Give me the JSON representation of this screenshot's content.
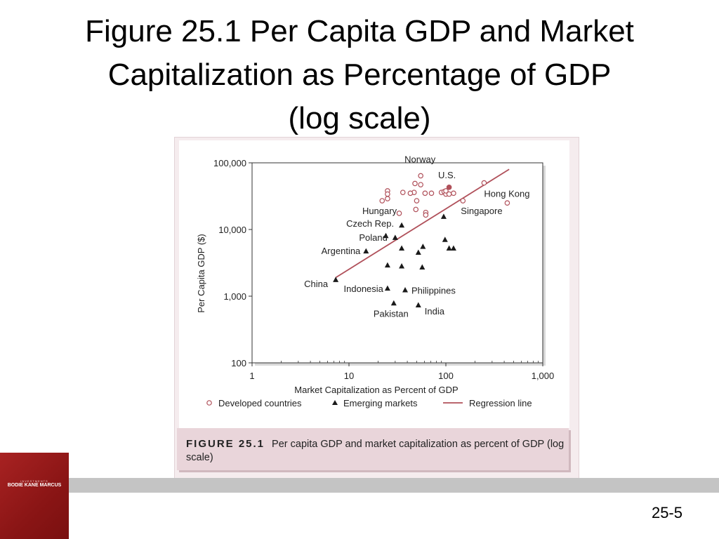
{
  "slide": {
    "title_lines": [
      "Figure 25.1 Per Capita GDP and Market",
      "Capitalization as Percentage of GDP",
      "(log scale)"
    ],
    "slide_number": "25-5"
  },
  "book": {
    "series": "INVESTMENTS",
    "authors": "BODIE  KANE  MARCUS"
  },
  "caption": {
    "label": "FIGURE 25.1",
    "text": "Per capita GDP and market capitalization as percent of GDP (log scale)"
  },
  "colors": {
    "developed": "#b0505a",
    "regression": "#b0505a",
    "emerging": "#1a1a1a"
  },
  "chart_data": {
    "type": "scatter",
    "xlabel": "Market Capitalization as Percent of GDP",
    "ylabel": "Per Capita GDP ($)",
    "x_scale": "log",
    "y_scale": "log",
    "xlim": [
      1,
      1000
    ],
    "ylim": [
      100,
      100000
    ],
    "x_ticks": [
      1,
      10,
      100,
      1000
    ],
    "x_tick_labels": [
      "1",
      "10",
      "100",
      "1,000"
    ],
    "y_ticks": [
      100,
      1000,
      10000,
      100000
    ],
    "y_tick_labels": [
      "100",
      "1,000",
      "10,000",
      "100,000"
    ],
    "grid": false,
    "legend_position": "bottom",
    "legend": [
      "Developed countries",
      "Emerging markets",
      "Regression line"
    ],
    "series": [
      {
        "name": "Developed countries",
        "marker": "open-circle",
        "points": [
          [
            55,
            64000
          ],
          [
            48,
            49000
          ],
          [
            55,
            47000
          ],
          [
            108,
            43000
          ],
          [
            25,
            38000
          ],
          [
            36,
            36000
          ],
          [
            47,
            36000
          ],
          [
            25,
            34000
          ],
          [
            43,
            35000
          ],
          [
            61,
            35000
          ],
          [
            90,
            36000
          ],
          [
            96,
            37000
          ],
          [
            100,
            34000
          ],
          [
            108,
            34000
          ],
          [
            120,
            35000
          ],
          [
            248,
            50000
          ],
          [
            25,
            29000
          ],
          [
            50,
            27000
          ],
          [
            22,
            27000
          ],
          [
            150,
            27000
          ],
          [
            430,
            25000
          ],
          [
            49,
            20000
          ],
          [
            62,
            18000
          ],
          [
            62,
            16500
          ],
          [
            33,
            17500
          ],
          [
            71,
            35000
          ],
          [
            100,
            38000
          ]
        ]
      },
      {
        "name": "Emerging markets",
        "marker": "filled-triangle",
        "points": [
          [
            35,
            11500
          ],
          [
            95,
            15500
          ],
          [
            24,
            8000
          ],
          [
            30,
            7500
          ],
          [
            35,
            5200
          ],
          [
            58,
            5500
          ],
          [
            52,
            4500
          ],
          [
            15,
            4700
          ],
          [
            98,
            7000
          ],
          [
            108,
            5200
          ],
          [
            120,
            5200
          ],
          [
            25,
            2900
          ],
          [
            35,
            2800
          ],
          [
            57,
            2700
          ],
          [
            7.3,
            1750
          ],
          [
            25,
            1300
          ],
          [
            38,
            1230
          ],
          [
            29,
            780
          ],
          [
            52,
            730
          ]
        ]
      },
      {
        "name": "Regression line",
        "type": "line",
        "points": [
          [
            7.3,
            1900
          ],
          [
            450,
            80000
          ]
        ]
      }
    ],
    "annotations": [
      {
        "text": "Norway",
        "x": 55,
        "y": 64000
      },
      {
        "text": "U.S.",
        "x": 108,
        "y": 43000
      },
      {
        "text": "Hong Kong",
        "x": 248,
        "y": 50000
      },
      {
        "text": "Singapore",
        "x": 150,
        "y": 27000
      },
      {
        "text": "Hungary",
        "x": 35,
        "y": 11500
      },
      {
        "text": "Czech Rep.",
        "x": 35,
        "y": 11500
      },
      {
        "text": "Poland",
        "x": 30,
        "y": 7500
      },
      {
        "text": "Argentina",
        "x": 15,
        "y": 4700
      },
      {
        "text": "China",
        "x": 7.3,
        "y": 1750
      },
      {
        "text": "Indonesia",
        "x": 25,
        "y": 1300
      },
      {
        "text": "Philippines",
        "x": 38,
        "y": 1230
      },
      {
        "text": "Pakistan",
        "x": 29,
        "y": 780
      },
      {
        "text": "India",
        "x": 52,
        "y": 730
      }
    ]
  }
}
